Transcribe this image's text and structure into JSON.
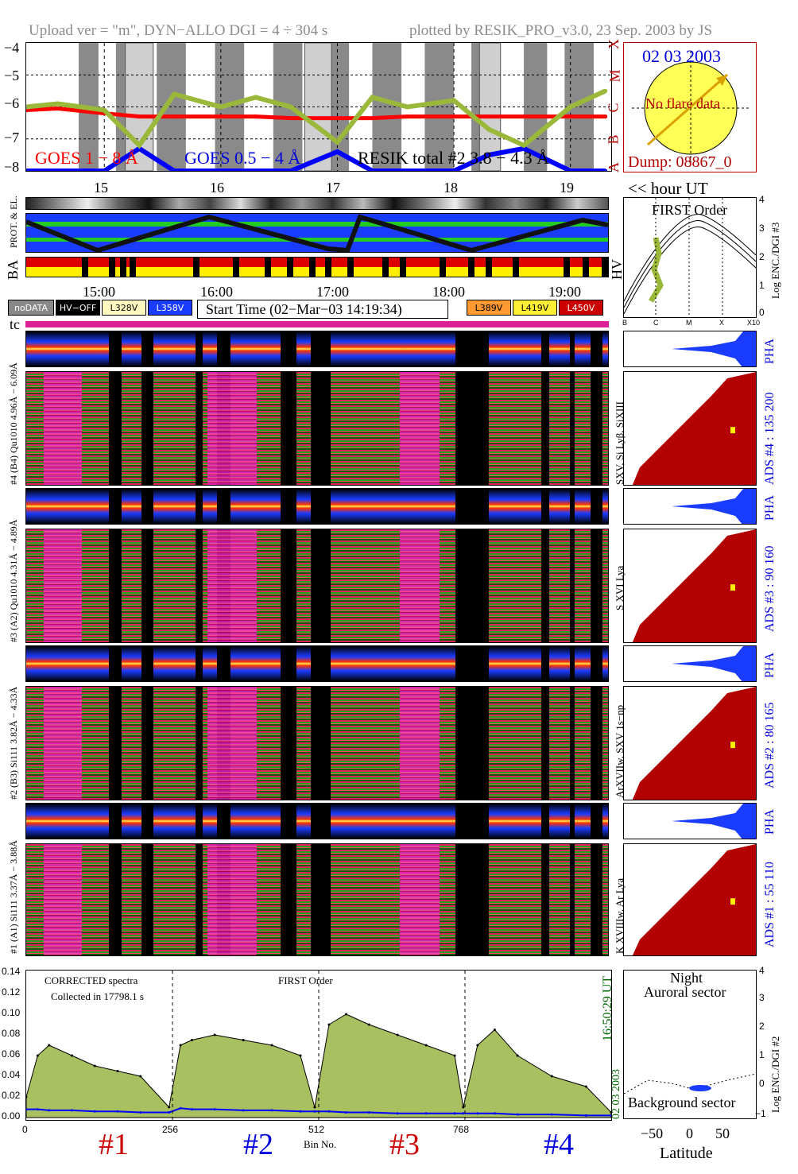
{
  "header": {
    "left": "Upload ver = \"m\", DYN−ALLO DGI =   4 ÷ 304 s",
    "right": "plotted by RESIK_PRO_v3.0, 23 Sep. 2003 by JS"
  },
  "goes_panel": {
    "yticks": [
      "−4",
      "−5",
      "−6",
      "−7",
      "−8"
    ],
    "class_letters": [
      "X",
      "M",
      "C",
      "B",
      "A"
    ],
    "legend_goes1": "GOES 1 − 8 Å",
    "legend_goes05": "GOES 0.5 − 4 Å",
    "legend_resik": "RESIK total #2  3.8 − 4.3 Å",
    "hour_ticks": [
      "15",
      "16",
      "17",
      "18",
      "19"
    ],
    "hour_label": "<< hour UT"
  },
  "sun_panel": {
    "date": "02 03 2003",
    "flare_text": "No flare data",
    "dump": "Dump: 08867_0"
  },
  "status_rows": {
    "label_prot": "PROT. & EL.",
    "label_ba": "BA",
    "label_hv": "HV"
  },
  "time_axis": {
    "ticks": [
      "15:00",
      "16:00",
      "17:00",
      "18:00",
      "19:00"
    ]
  },
  "legend": {
    "nodata": "noDATA",
    "hvoff": "HV−OFF",
    "l328": "L328V",
    "l358": "L358V",
    "start_time": "Start Time (02−Mar−03 14:19:34)",
    "l389": "L389V",
    "l419": "L419V",
    "l450": "L450V",
    "tc": "tc"
  },
  "first_order_panel": {
    "title": "FIRST Order",
    "ylabel": "Log ENC./DGI #3",
    "yticks": [
      "4",
      "3",
      "2",
      "1",
      "0"
    ],
    "xticks": [
      "B",
      "C",
      "M",
      "X",
      "X10"
    ]
  },
  "detectors": [
    {
      "pha_label": "#4 (B4) Qu1010 4.96Å − 6.09Å",
      "spec_label": "SXV, Si Lyβ, SiXIII",
      "ads_label": "ADS #4 :  135 200",
      "pha": "PHA"
    },
    {
      "pha_label": "#3 (A2) Qu1010 4.31Å − 4.89Å",
      "spec_label": "S XVI Lya",
      "ads_label": "ADS #3 :   90 160",
      "pha": "PHA"
    },
    {
      "pha_label": "#2 (B3) Si111 3.82Å − 4.33Å",
      "spec_label": "ArXVIIw, SXV 1s−np",
      "ads_label": "ADS #2 :   80 165",
      "pha": "PHA"
    },
    {
      "pha_label": "#1 (A1) Si111 3.37Å − 3.88Å",
      "spec_label": "K XVIIIw, Ar Lya",
      "ads_label": "ADS #1 :   55 110",
      "pha": "PHA"
    }
  ],
  "spectrum_panel": {
    "text1": "CORRECTED spectra",
    "text2": "Collected in 17798.1 s",
    "text3": "FIRST Order",
    "time": "16:50:29 UT",
    "date": "02 03 2003",
    "xlabel": "Bin No.",
    "xticks": [
      "0",
      "256",
      "512",
      "768"
    ],
    "channels": [
      "#1",
      "#2",
      "#3",
      "#4"
    ]
  },
  "orbit_panel": {
    "top1": "Night",
    "top2": "Auroral sector",
    "bottom": "Background sector",
    "ylabel": "Log ENC./DGI #2",
    "xlabel": "Latitude",
    "xticks": [
      "−50",
      "0",
      "50"
    ],
    "yticks": [
      "4",
      "3",
      "2",
      "1",
      "0",
      "−1"
    ]
  },
  "chart_data": [
    {
      "type": "line",
      "title": "",
      "ylabel": "",
      "xlabel": "hour UT",
      "ylim": [
        -8,
        -4
      ],
      "yticks": [
        -4,
        -5,
        -6,
        -7,
        -8
      ],
      "x": [
        14.33,
        14.6,
        15.0,
        15.3,
        15.6,
        16.0,
        16.3,
        16.6,
        17.0,
        17.3,
        17.6,
        18.0,
        18.3,
        18.6,
        19.0,
        19.3
      ],
      "series": [
        {
          "name": "GOES 1 − 8 Å",
          "color": "#ff0000",
          "values": [
            -6.1,
            -6.05,
            -6.2,
            -6.3,
            -6.3,
            -6.3,
            -6.3,
            -6.35,
            -6.35,
            -6.35,
            -6.3,
            -6.3,
            -6.3,
            -6.3,
            -6.3,
            -6.3
          ]
        },
        {
          "name": "GOES 0.5 − 4 Å",
          "color": "#0000ff",
          "values": [
            -8.0,
            -8.0,
            -8.0,
            -7.3,
            -8.0,
            -8.0,
            -8.0,
            -8.0,
            -7.4,
            -8.0,
            -8.0,
            -8.0,
            -7.5,
            -7.3,
            -8.0,
            -8.0
          ]
        },
        {
          "name": "RESIK total #2  3.8 − 4.3 Å",
          "color": "#9ab83a",
          "values": [
            -6.0,
            -5.9,
            -6.1,
            -7.2,
            -5.6,
            -6.0,
            -5.7,
            -6.0,
            -7.1,
            -5.7,
            -6.0,
            -5.8,
            -6.7,
            -7.2,
            -6.0,
            -5.5
          ]
        }
      ]
    },
    {
      "type": "area",
      "title": "",
      "xlabel": "Bin No.",
      "ylabel": "",
      "xlim": [
        0,
        1024
      ],
      "ylim": [
        0,
        0.14
      ],
      "yticks": [
        0.0,
        0.02,
        0.04,
        0.06,
        0.08,
        0.1,
        0.12,
        0.14
      ],
      "xticks": [
        0,
        256,
        512,
        768
      ],
      "series": [
        {
          "name": "CORRECTED spectra",
          "color": "#a8c060",
          "x": [
            0,
            20,
            40,
            80,
            120,
            160,
            200,
            250,
            270,
            290,
            330,
            380,
            430,
            480,
            505,
            530,
            560,
            600,
            650,
            700,
            750,
            765,
            790,
            820,
            860,
            920,
            980,
            1024
          ],
          "values": [
            0.02,
            0.06,
            0.07,
            0.06,
            0.05,
            0.045,
            0.04,
            0.01,
            0.07,
            0.075,
            0.08,
            0.075,
            0.07,
            0.06,
            0.01,
            0.09,
            0.1,
            0.09,
            0.08,
            0.07,
            0.06,
            0.01,
            0.07,
            0.085,
            0.06,
            0.04,
            0.03,
            0.005
          ]
        },
        {
          "name": "FIRST Order",
          "color": "#0000ff",
          "x": [
            0,
            20,
            40,
            80,
            120,
            160,
            200,
            250,
            270,
            290,
            330,
            380,
            430,
            480,
            505,
            530,
            560,
            600,
            650,
            700,
            750,
            765,
            790,
            820,
            860,
            920,
            980,
            1024
          ],
          "values": [
            0.008,
            0.008,
            0.007,
            0.007,
            0.006,
            0.006,
            0.005,
            0.005,
            0.009,
            0.008,
            0.008,
            0.007,
            0.007,
            0.006,
            0.006,
            0.006,
            0.005,
            0.005,
            0.004,
            0.004,
            0.004,
            0.004,
            0.004,
            0.004,
            0.003,
            0.003,
            0.002,
            0.002
          ]
        }
      ]
    }
  ]
}
